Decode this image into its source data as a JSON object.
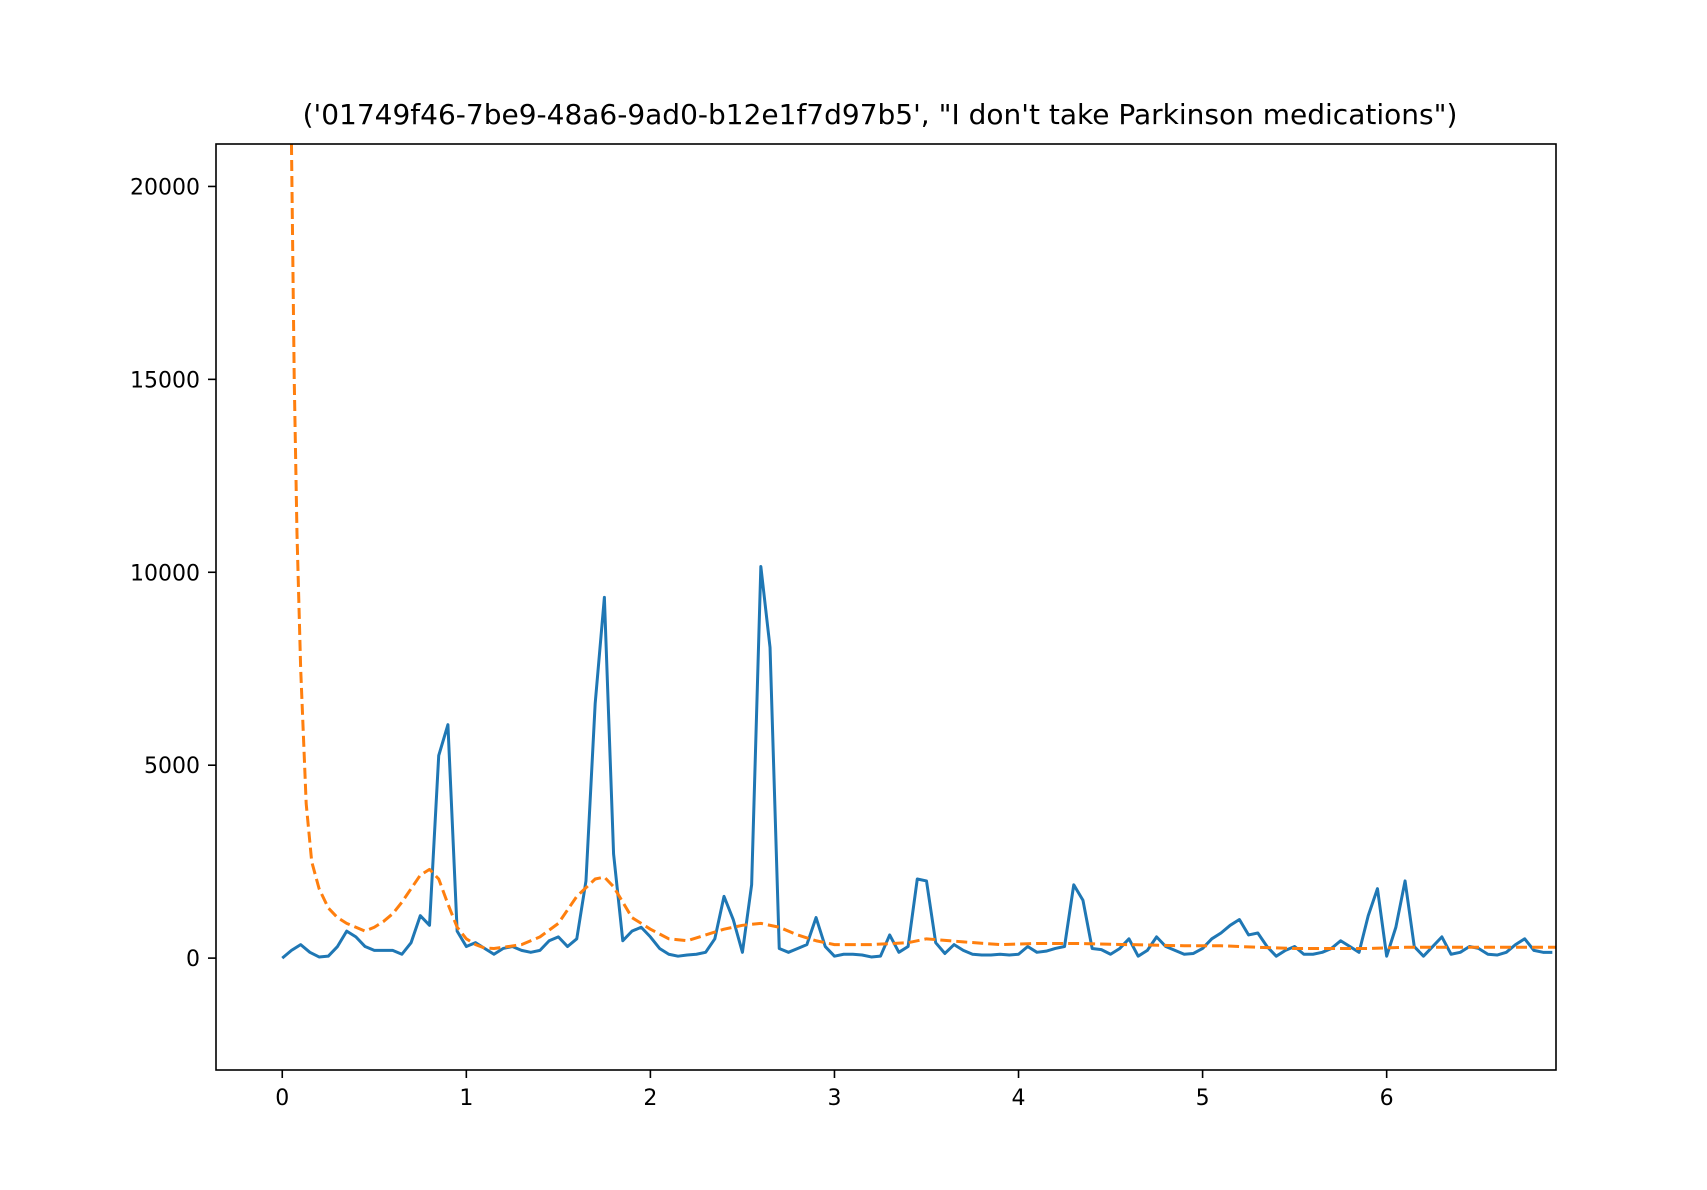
{
  "chart_data": {
    "type": "line",
    "title": "('01749f46-7be9-48a6-9ad0-b12e1f7d97b5', \"I don't take Parkinson medications\")",
    "xlabel": "",
    "ylabel": "",
    "xlim": [
      -0.36,
      6.92
    ],
    "ylim": [
      -2900,
      21100
    ],
    "x_ticks": [
      0,
      1,
      2,
      3,
      4,
      5,
      6
    ],
    "y_ticks": [
      0,
      5000,
      10000,
      15000,
      20000
    ],
    "grid": false,
    "legend": "none",
    "series": [
      {
        "color": "#1f77b4",
        "style": "solid",
        "x": [
          0,
          0.05,
          0.1,
          0.15,
          0.2,
          0.25,
          0.3,
          0.35,
          0.4,
          0.45,
          0.5,
          0.55,
          0.6,
          0.65,
          0.7,
          0.75,
          0.8,
          0.85,
          0.9,
          0.95,
          1.0,
          1.05,
          1.1,
          1.15,
          1.2,
          1.25,
          1.3,
          1.35,
          1.4,
          1.45,
          1.5,
          1.55,
          1.6,
          1.65,
          1.7,
          1.75,
          1.8,
          1.85,
          1.9,
          1.95,
          2.0,
          2.05,
          2.1,
          2.15,
          2.2,
          2.25,
          2.3,
          2.35,
          2.4,
          2.45,
          2.5,
          2.55,
          2.6,
          2.65,
          2.7,
          2.75,
          2.8,
          2.85,
          2.9,
          2.95,
          3.0,
          3.05,
          3.1,
          3.15,
          3.2,
          3.25,
          3.3,
          3.35,
          3.4,
          3.45,
          3.5,
          3.55,
          3.6,
          3.65,
          3.7,
          3.75,
          3.8,
          3.85,
          3.9,
          3.95,
          4.0,
          4.05,
          4.1,
          4.15,
          4.2,
          4.25,
          4.3,
          4.35,
          4.4,
          4.45,
          4.5,
          4.55,
          4.6,
          4.65,
          4.7,
          4.75,
          4.8,
          4.85,
          4.9,
          4.95,
          5.0,
          5.05,
          5.1,
          5.15,
          5.2,
          5.25,
          5.3,
          5.35,
          5.4,
          5.45,
          5.5,
          5.55,
          5.6,
          5.65,
          5.7,
          5.75,
          5.8,
          5.85,
          5.9,
          5.95,
          6.0,
          6.05,
          6.1,
          6.15,
          6.2,
          6.25,
          6.3,
          6.35,
          6.4,
          6.45,
          6.5,
          6.55,
          6.6,
          6.65,
          6.7,
          6.75,
          6.8,
          6.85,
          6.9
        ],
        "y": [
          0,
          200,
          350,
          150,
          30,
          50,
          300,
          700,
          550,
          300,
          200,
          200,
          200,
          100,
          400,
          1100,
          850,
          5250,
          6050,
          700,
          300,
          400,
          250,
          100,
          250,
          300,
          200,
          150,
          200,
          450,
          550,
          300,
          500,
          2000,
          6600,
          9350,
          2700,
          450,
          700,
          800,
          550,
          250,
          100,
          50,
          80,
          100,
          150,
          500,
          1600,
          1000,
          150,
          1900,
          10150,
          8050,
          250,
          150,
          250,
          350,
          1050,
          300,
          50,
          100,
          100,
          80,
          30,
          50,
          600,
          150,
          300,
          2050,
          2000,
          400,
          120,
          350,
          200,
          100,
          80,
          80,
          100,
          80,
          100,
          300,
          150,
          180,
          250,
          300,
          1900,
          1500,
          250,
          220,
          100,
          250,
          500,
          50,
          200,
          550,
          300,
          200,
          100,
          120,
          250,
          500,
          650,
          850,
          1000,
          600,
          650,
          300,
          50,
          200,
          300,
          100,
          100,
          150,
          250,
          450,
          300,
          150,
          1100,
          1800,
          50,
          800,
          2000,
          300,
          50,
          300,
          550,
          100,
          150,
          300,
          250,
          100,
          80,
          150,
          350,
          500,
          200,
          150,
          150
        ]
      },
      {
        "color": "#ff7f0e",
        "style": "dashed",
        "x": [
          0.05,
          0.065,
          0.08,
          0.1,
          0.13,
          0.16,
          0.2,
          0.25,
          0.3,
          0.35,
          0.4,
          0.45,
          0.5,
          0.55,
          0.6,
          0.65,
          0.7,
          0.75,
          0.8,
          0.85,
          0.9,
          0.95,
          1.0,
          1.05,
          1.1,
          1.15,
          1.2,
          1.3,
          1.4,
          1.5,
          1.6,
          1.7,
          1.75,
          1.8,
          1.85,
          1.9,
          2.0,
          2.1,
          2.2,
          2.3,
          2.4,
          2.5,
          2.6,
          2.7,
          2.8,
          2.9,
          3.0,
          3.2,
          3.4,
          3.5,
          3.7,
          3.9,
          4.1,
          4.3,
          4.5,
          4.7,
          4.9,
          5.1,
          5.3,
          5.5,
          5.7,
          5.9,
          6.1,
          6.3,
          6.5,
          6.7,
          6.92
        ],
        "y": [
          21100,
          15000,
          11000,
          7500,
          4000,
          2500,
          1800,
          1300,
          1050,
          900,
          800,
          700,
          800,
          950,
          1150,
          1450,
          1800,
          2150,
          2300,
          2050,
          1400,
          800,
          500,
          350,
          260,
          250,
          280,
          350,
          550,
          900,
          1600,
          2050,
          2100,
          1850,
          1450,
          1050,
          750,
          500,
          450,
          600,
          750,
          850,
          900,
          800,
          600,
          450,
          350,
          350,
          400,
          500,
          420,
          350,
          380,
          380,
          360,
          340,
          320,
          320,
          280,
          250,
          250,
          250,
          280,
          280,
          280,
          280,
          280
        ]
      }
    ]
  }
}
